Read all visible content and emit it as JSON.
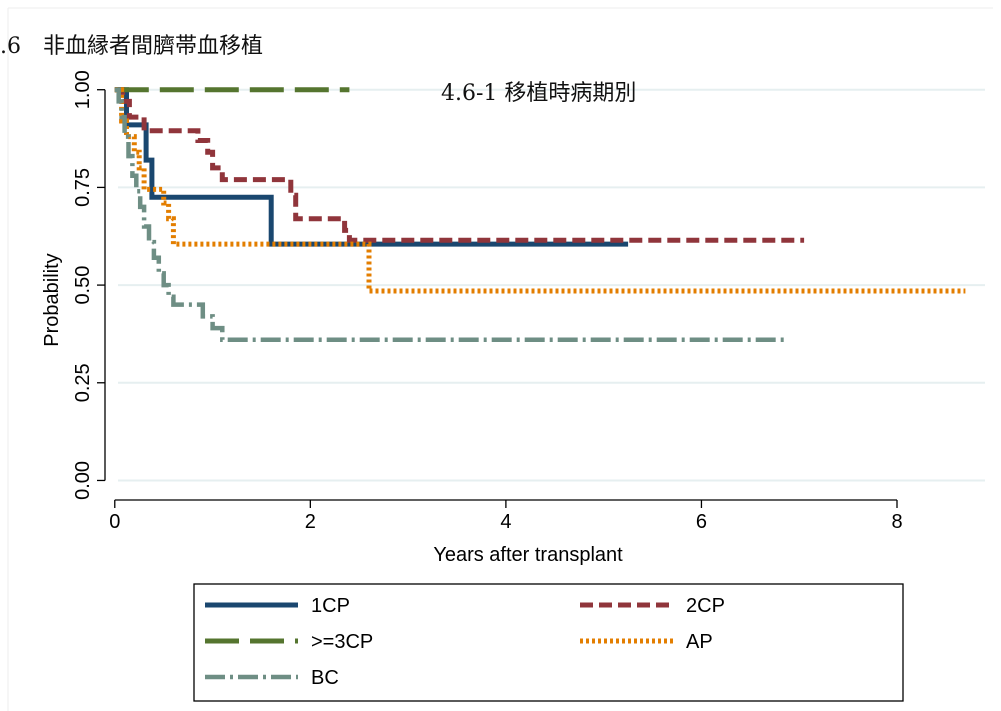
{
  "section_title": ".6　非血縁者間臍帯血移植",
  "chart_data": {
    "type": "line",
    "subtitle": "4.6-1 移植時病期別",
    "xlabel": "Years after transplant",
    "ylabel": "Probability",
    "xlim": [
      -0.1,
      8.9
    ],
    "ylim": [
      -0.05,
      1.03
    ],
    "xticks": [
      0,
      2,
      4,
      6,
      8
    ],
    "xtick_labels": [
      "0",
      "2",
      "4",
      "6",
      "8"
    ],
    "yticks": [
      0,
      0.25,
      0.5,
      0.75,
      1.0
    ],
    "ytick_labels": [
      "0.00",
      "0.25",
      "0.50",
      "0.75",
      "1.00"
    ],
    "grid": "horizontal",
    "legend_position": "bottom",
    "series": [
      {
        "name": "1CP",
        "color": "#1a476f",
        "dash": "solid",
        "step": true,
        "points": [
          [
            0,
            1.0
          ],
          [
            0.12,
            0.91
          ],
          [
            0.32,
            0.82
          ],
          [
            0.38,
            0.725
          ],
          [
            1.6,
            0.605
          ],
          [
            5.25,
            0.605
          ]
        ]
      },
      {
        "name": "2CP",
        "color": "#90353b",
        "dash": "dashed",
        "step": true,
        "points": [
          [
            0,
            1.0
          ],
          [
            0.08,
            0.97
          ],
          [
            0.15,
            0.93
          ],
          [
            0.3,
            0.895
          ],
          [
            0.85,
            0.87
          ],
          [
            0.95,
            0.84
          ],
          [
            1.0,
            0.8
          ],
          [
            1.1,
            0.77
          ],
          [
            1.8,
            0.73
          ],
          [
            1.85,
            0.67
          ],
          [
            2.35,
            0.64
          ],
          [
            2.4,
            0.615
          ],
          [
            7.05,
            0.615
          ]
        ]
      },
      {
        "name": ">=3CP",
        "color": "#55752f",
        "dash": "longdash",
        "step": true,
        "points": [
          [
            0,
            1.0
          ],
          [
            2.4,
            1.0
          ]
        ]
      },
      {
        "name": "AP",
        "color": "#e37e00",
        "dash": "dotted",
        "step": true,
        "points": [
          [
            0,
            1.0
          ],
          [
            0.07,
            0.92
          ],
          [
            0.12,
            0.88
          ],
          [
            0.2,
            0.84
          ],
          [
            0.25,
            0.8
          ],
          [
            0.3,
            0.745
          ],
          [
            0.5,
            0.71
          ],
          [
            0.55,
            0.67
          ],
          [
            0.6,
            0.605
          ],
          [
            2.6,
            0.485
          ],
          [
            8.7,
            0.485
          ]
        ]
      },
      {
        "name": "BC",
        "color": "#6e8e84",
        "dash": "dashdot",
        "step": true,
        "points": [
          [
            0,
            1.0
          ],
          [
            0.04,
            0.97
          ],
          [
            0.07,
            0.93
          ],
          [
            0.1,
            0.88
          ],
          [
            0.14,
            0.83
          ],
          [
            0.18,
            0.78
          ],
          [
            0.22,
            0.74
          ],
          [
            0.26,
            0.7
          ],
          [
            0.3,
            0.65
          ],
          [
            0.35,
            0.61
          ],
          [
            0.4,
            0.57
          ],
          [
            0.45,
            0.53
          ],
          [
            0.5,
            0.5
          ],
          [
            0.55,
            0.47
          ],
          [
            0.6,
            0.45
          ],
          [
            0.9,
            0.42
          ],
          [
            1.0,
            0.39
          ],
          [
            1.1,
            0.36
          ],
          [
            6.85,
            0.36
          ]
        ]
      }
    ]
  }
}
